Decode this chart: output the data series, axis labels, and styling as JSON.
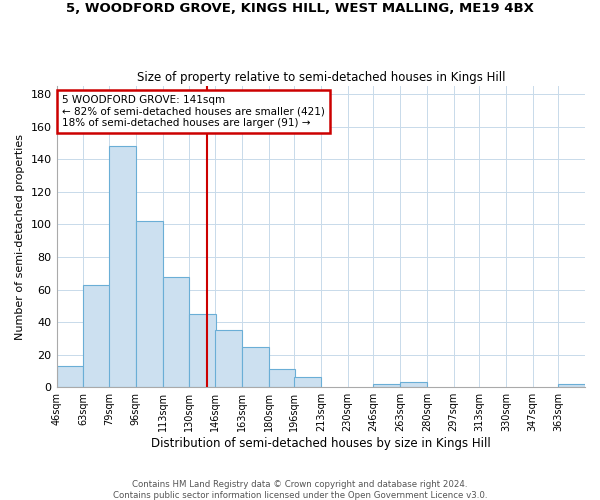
{
  "title": "5, WOODFORD GROVE, KINGS HILL, WEST MALLING, ME19 4BX",
  "subtitle": "Size of property relative to semi-detached houses in Kings Hill",
  "xlabel": "Distribution of semi-detached houses by size in Kings Hill",
  "ylabel": "Number of semi-detached properties",
  "annotation_title": "5 WOODFORD GROVE: 141sqm",
  "annotation_line1": "← 82% of semi-detached houses are smaller (421)",
  "annotation_line2": "18% of semi-detached houses are larger (91) →",
  "property_size": 141,
  "bar_left_edges": [
    46,
    63,
    79,
    96,
    113,
    130,
    146,
    163,
    180,
    196,
    213,
    230,
    246,
    263,
    280,
    297,
    313,
    330,
    347,
    363
  ],
  "bar_heights": [
    13,
    63,
    148,
    102,
    68,
    45,
    35,
    25,
    11,
    6,
    0,
    0,
    2,
    3,
    0,
    0,
    0,
    0,
    0,
    2
  ],
  "bar_color": "#cce0f0",
  "bar_edge_color": "#6aaed6",
  "vline_x": 141,
  "vline_color": "#cc0000",
  "box_color": "#cc0000",
  "ylim": [
    0,
    185
  ],
  "yticks": [
    0,
    20,
    40,
    60,
    80,
    100,
    120,
    140,
    160,
    180
  ],
  "footer_line1": "Contains HM Land Registry data © Crown copyright and database right 2024.",
  "footer_line2": "Contains public sector information licensed under the Open Government Licence v3.0.",
  "bg_color": "#ffffff",
  "grid_color": "#c8daea"
}
